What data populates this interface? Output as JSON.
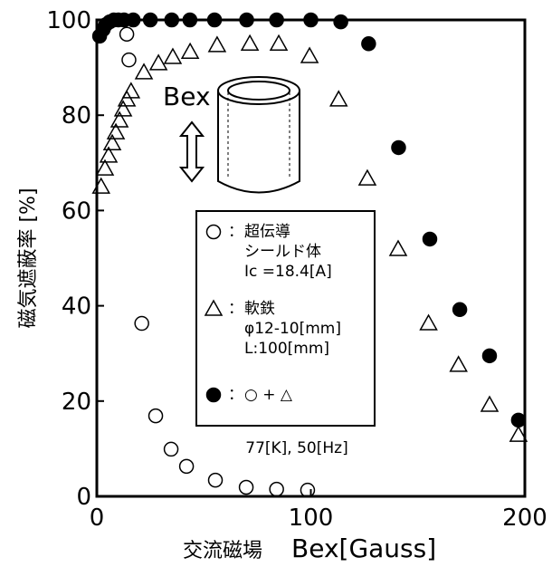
{
  "chart_data": {
    "type": "scatter",
    "y_label": "磁気遮蔽率 [%]",
    "x_label": "交流磁場",
    "x_label_symbol": "Bex[Gauss]",
    "inset_label": "Bex",
    "condition": "77[K], 50[Hz]",
    "xlim": [
      0,
      200
    ],
    "xticks": [
      0,
      100,
      200
    ],
    "ylim": [
      0,
      100
    ],
    "yticks": [
      0,
      20,
      40,
      60,
      80,
      100
    ],
    "series": [
      {
        "name": "超伝導\nシールド体",
        "detail": "Ic =18.4[A]",
        "marker": "open-circle",
        "color": "#000000",
        "x": [
          14,
          15,
          21,
          27.5,
          34.7,
          41.9,
          55.4,
          69.8,
          84,
          98.5
        ],
        "values": [
          97,
          91.6,
          36.3,
          16.9,
          9.9,
          6.3,
          3.4,
          1.9,
          1.5,
          1.3
        ]
      },
      {
        "name": "軟鉄",
        "detail": "φ12-10[mm]\nL:100[mm]",
        "marker": "triangle",
        "color": "#000000",
        "x": [
          2,
          3.8,
          5.5,
          7.2,
          8.9,
          10.6,
          12.3,
          14,
          16,
          22,
          28.8,
          35.5,
          43.6,
          56.2,
          71.5,
          85,
          99.4,
          113,
          126.4,
          140.8,
          155,
          169,
          183.5,
          197
        ],
        "values": [
          65,
          68.8,
          71.5,
          74.1,
          76.4,
          78.9,
          81.2,
          83.3,
          85,
          89,
          90.9,
          92.2,
          93.3,
          94.7,
          95,
          95,
          92.4,
          83.3,
          66.7,
          51.9,
          36.3,
          27.6,
          19.2,
          12.9
        ]
      },
      {
        "name": "○ + △",
        "marker": "filled-circle",
        "color": "#000000",
        "x": [
          1.3,
          3,
          4.2,
          6,
          8,
          10,
          12.7,
          17,
          25,
          35,
          43.5,
          55,
          70,
          84,
          100,
          114,
          127,
          141,
          155.6,
          169.6,
          183.5,
          197
        ],
        "values": [
          96.6,
          98,
          99,
          99.6,
          100,
          100,
          100,
          100,
          100,
          100,
          100,
          100,
          100,
          100,
          100,
          99.6,
          95,
          73.2,
          54,
          39.2,
          29.5,
          16
        ]
      }
    ]
  }
}
